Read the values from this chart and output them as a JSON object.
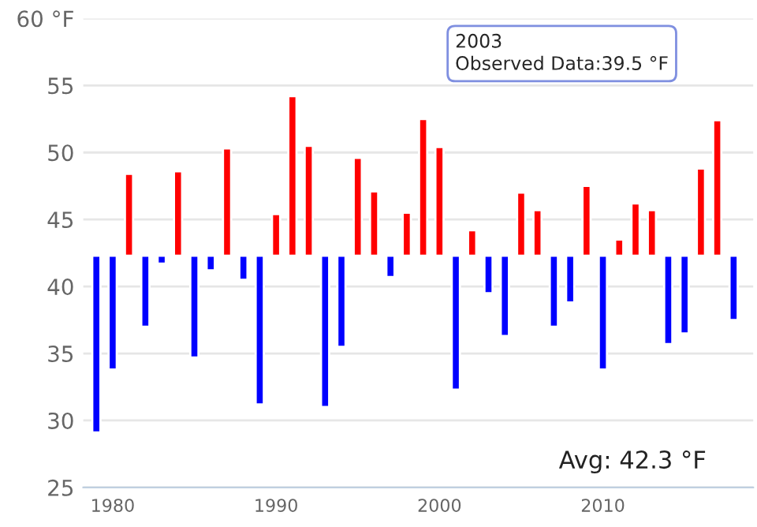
{
  "chart_data": {
    "type": "bar",
    "x": [
      1979,
      1980,
      1981,
      1982,
      1983,
      1984,
      1985,
      1986,
      1987,
      1988,
      1989,
      1990,
      1991,
      1992,
      1993,
      1994,
      1995,
      1996,
      1997,
      1998,
      1999,
      2000,
      2001,
      2002,
      2003,
      2004,
      2005,
      2006,
      2007,
      2008,
      2009,
      2010,
      2011,
      2012,
      2013,
      2014,
      2015,
      2016,
      2017,
      2018
    ],
    "base": [
      42.3,
      42.3,
      42.3,
      42.3,
      42.3,
      42.3,
      42.3,
      42.3,
      42.3,
      42.3,
      42.3,
      42.3,
      42.3,
      42.3,
      42.3,
      42.3,
      42.3,
      42.3,
      42.3,
      42.3,
      42.3,
      42.3,
      42.3,
      42.3,
      42.3,
      42.3,
      42.3,
      42.3,
      42.3,
      42.3,
      42.3,
      42.3,
      42.3,
      42.3,
      42.3,
      42.3,
      42.3,
      42.3,
      42.3,
      42.3
    ],
    "values": [
      -13.2,
      -8.5,
      6.1,
      -5.3,
      -0.6,
      6.3,
      -7.6,
      -1.1,
      8.0,
      -1.8,
      -11.1,
      3.1,
      11.9,
      8.2,
      -11.3,
      -6.8,
      7.3,
      4.8,
      -1.6,
      3.2,
      10.2,
      8.1,
      -10.0,
      1.9,
      -2.8,
      -6.0,
      4.7,
      3.4,
      -5.3,
      -3.5,
      5.2,
      -8.5,
      1.2,
      3.9,
      3.4,
      -6.6,
      -5.8,
      6.5,
      10.1,
      -4.8
    ],
    "colors": [
      "#0000ff",
      "#0000ff",
      "#ff0000",
      "#0000ff",
      "#0000ff",
      "#ff0000",
      "#0000ff",
      "#0000ff",
      "#ff0000",
      "#0000ff",
      "#0000ff",
      "#ff0000",
      "#ff0000",
      "#ff0000",
      "#0000ff",
      "#0000ff",
      "#ff0000",
      "#ff0000",
      "#0000ff",
      "#ff0000",
      "#ff0000",
      "#ff0000",
      "#0000ff",
      "#ff0000",
      "#0000ff",
      "#0000ff",
      "#ff0000",
      "#ff0000",
      "#0000ff",
      "#0000ff",
      "#ff0000",
      "#0000ff",
      "#ff0000",
      "#ff0000",
      "#ff0000",
      "#0000ff",
      "#0000ff",
      "#ff0000",
      "#ff0000",
      "#0000ff"
    ],
    "xlim": [
      1978.2,
      2019.2
    ],
    "xticks": [
      1980,
      1990,
      2000,
      2010
    ],
    "ylim": [
      25,
      60
    ],
    "yticks": [
      25,
      30,
      35,
      40,
      45,
      50,
      55,
      {
        "value": 60,
        "label": "60 °F"
      }
    ],
    "grid": "y",
    "annotations": [
      "2003\nObserved Data:39.5 °F",
      "Avg: 42.3 °F"
    ]
  }
}
